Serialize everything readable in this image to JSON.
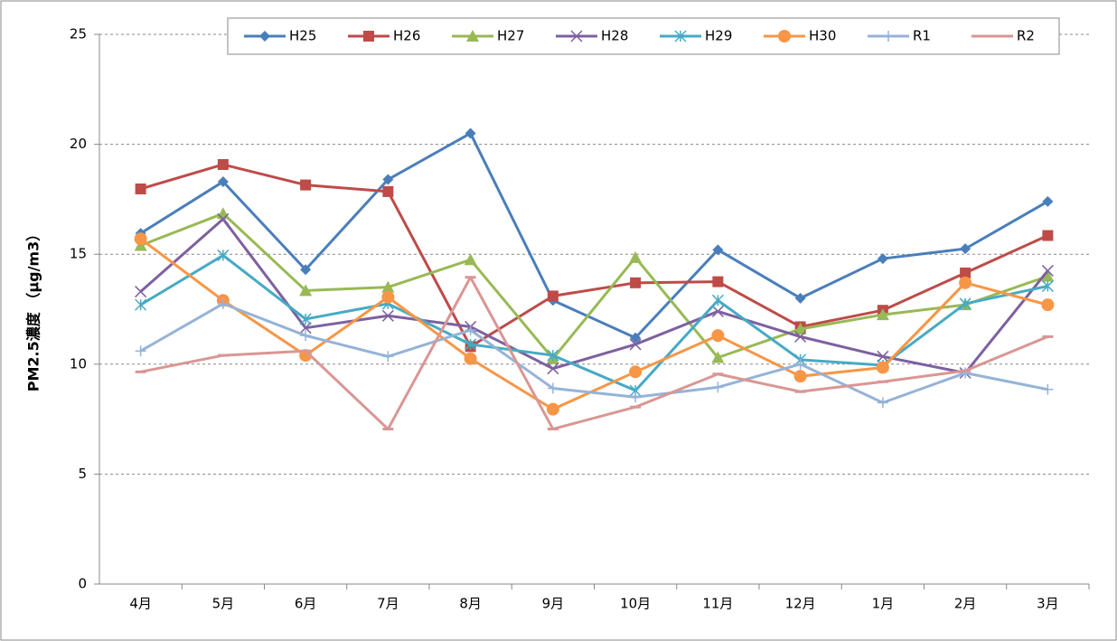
{
  "chart_data": {
    "type": "line",
    "y_label": "PM2.5濃度 （μg/m3）",
    "categories": [
      "4月",
      "5月",
      "6月",
      "7月",
      "8月",
      "9月",
      "10月",
      "11月",
      "12月",
      "1月",
      "2月",
      "3月"
    ],
    "ylim": [
      0,
      25
    ],
    "yticks": [
      0,
      5,
      10,
      15,
      20,
      25
    ],
    "grid": true,
    "legend": "top",
    "series": [
      {
        "name": "H25",
        "color": "#4a7ebb",
        "marker": "diamond",
        "values": [
          15.95,
          18.3,
          14.3,
          18.4,
          20.5,
          12.9,
          11.2,
          15.2,
          13.0,
          14.8,
          15.25,
          17.4
        ]
      },
      {
        "name": "H26",
        "color": "#be4b48",
        "marker": "square",
        "values": [
          17.97,
          19.08,
          18.15,
          17.85,
          10.8,
          13.1,
          13.7,
          13.75,
          11.7,
          12.45,
          14.15,
          15.85
        ]
      },
      {
        "name": "H27",
        "color": "#98b954",
        "marker": "triangle",
        "values": [
          15.4,
          16.85,
          13.35,
          13.5,
          14.75,
          10.25,
          14.85,
          10.3,
          11.6,
          12.25,
          12.7,
          14.0
        ]
      },
      {
        "name": "H28",
        "color": "#7d60a0",
        "marker": "x",
        "values": [
          13.3,
          16.6,
          11.65,
          12.2,
          11.7,
          9.8,
          10.9,
          12.4,
          11.25,
          10.35,
          9.6,
          14.25
        ]
      },
      {
        "name": "H29",
        "color": "#46aac5",
        "marker": "star",
        "values": [
          12.7,
          14.95,
          12.05,
          12.75,
          10.9,
          10.4,
          8.8,
          12.9,
          10.2,
          9.95,
          12.75,
          13.55
        ]
      },
      {
        "name": "H30",
        "color": "#f79646",
        "marker": "circle",
        "values": [
          15.7,
          12.9,
          10.4,
          13.05,
          10.25,
          7.95,
          9.65,
          11.3,
          9.45,
          9.85,
          13.7,
          12.7
        ]
      },
      {
        "name": "R1",
        "color": "#95b3d7",
        "marker": "plus",
        "values": [
          10.6,
          12.75,
          11.3,
          10.35,
          11.55,
          8.9,
          8.5,
          8.95,
          10.0,
          8.25,
          9.6,
          8.85
        ]
      },
      {
        "name": "R2",
        "color": "#d99694",
        "marker": "dash",
        "values": [
          9.65,
          10.4,
          10.6,
          7.05,
          13.95,
          7.05,
          8.05,
          9.55,
          8.75,
          9.2,
          9.7,
          11.25
        ]
      }
    ]
  }
}
